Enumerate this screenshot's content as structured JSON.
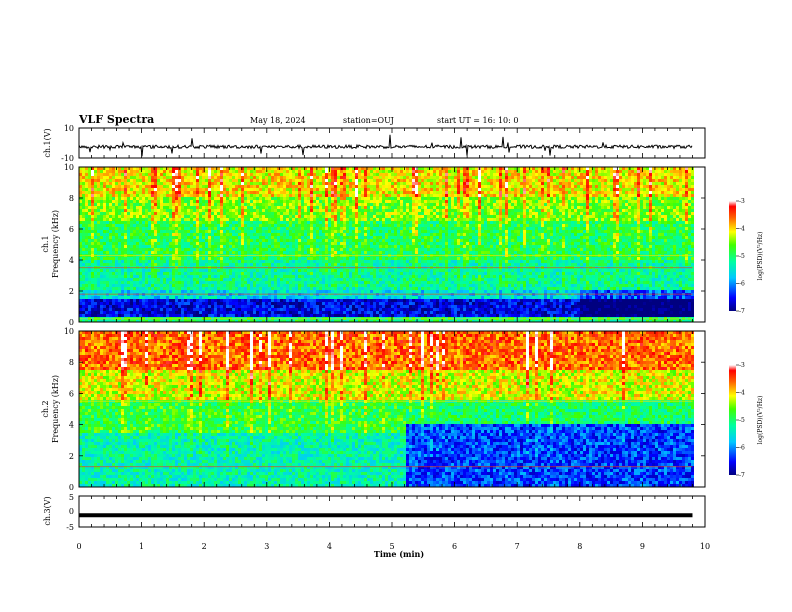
{
  "header": {
    "title": "VLF Spectra",
    "date": "May 18, 2024",
    "station": "station=OUJ",
    "start": "start  UT =   16: 10: 0"
  },
  "chart_data": [
    {
      "type": "line",
      "panel": "ch1-waveform",
      "ylabel": "ch.1(V)",
      "ylim": [
        -10,
        10
      ],
      "yticks": [
        "10",
        "-10"
      ],
      "baseline": -2.5,
      "color": "#000000"
    },
    {
      "type": "heatmap",
      "panel": "ch1-spectrogram",
      "ylabel": "ch.1\nFrequency (kHz)",
      "ylabel_lines": [
        "ch.1",
        "Frequency (kHz)"
      ],
      "ylim": [
        0,
        10
      ],
      "yticks": [
        "0",
        "2",
        "4",
        "6",
        "8",
        "10"
      ],
      "colorbar": {
        "label": "log(PSD)(V²/Hz)",
        "ticks": [
          "-3",
          "-4",
          "-5",
          "-6",
          "-7"
        ],
        "range": [
          -7,
          -3
        ]
      },
      "bands": [
        {
          "f_min": 0.0,
          "f_max": 0.3,
          "level": -5.0
        },
        {
          "f_min": 0.3,
          "f_max": 1.4,
          "level": -6.6
        },
        {
          "f_min": 1.4,
          "f_max": 2.0,
          "level": -5.6
        },
        {
          "f_min": 2.0,
          "f_max": 4.0,
          "level": -5.2
        },
        {
          "f_min": 4.0,
          "f_max": 6.5,
          "level": -4.9
        },
        {
          "f_min": 6.5,
          "f_max": 8.0,
          "level": -4.5
        },
        {
          "f_min": 8.0,
          "f_max": 10.0,
          "level": -4.1
        }
      ],
      "lines_kHz": [
        3.5,
        4.3,
        1.8,
        0.2
      ]
    },
    {
      "type": "heatmap",
      "panel": "ch2-spectrogram",
      "ylabel": "ch.2\nFrequency (kHz)",
      "ylabel_lines": [
        "ch.2",
        "Frequency (kHz)"
      ],
      "ylim": [
        0,
        10
      ],
      "yticks": [
        "0",
        "2",
        "4",
        "6",
        "8",
        "10"
      ],
      "colorbar": {
        "label": "log(PSD)(V²/Hz)",
        "ticks": [
          "-3",
          "-4",
          "-5",
          "-6",
          "-7"
        ],
        "range": [
          -7,
          -3
        ]
      },
      "bands_before_min_5_2": [
        {
          "f_min": 0.0,
          "f_max": 3.5,
          "level": -5.3
        },
        {
          "f_min": 3.5,
          "f_max": 5.5,
          "level": -4.8
        },
        {
          "f_min": 5.5,
          "f_max": 7.5,
          "level": -4.2
        },
        {
          "f_min": 7.5,
          "f_max": 10.0,
          "level": -3.6
        }
      ],
      "bands_after_min_5_2": [
        {
          "f_min": 0.0,
          "f_max": 4.0,
          "level": -6.3
        },
        {
          "f_min": 4.0,
          "f_max": 5.5,
          "level": -5.0
        },
        {
          "f_min": 5.5,
          "f_max": 7.5,
          "level": -4.2
        },
        {
          "f_min": 7.5,
          "f_max": 10.0,
          "level": -3.6
        }
      ],
      "transition_min": 5.2,
      "lines_kHz": [
        1.3,
        5.5
      ]
    },
    {
      "type": "line",
      "panel": "ch3-waveform",
      "ylabel": "ch.3(V)",
      "ylim": [
        -5,
        5
      ],
      "yticks": [
        "5",
        "0",
        "-5"
      ],
      "values": [
        -1.2
      ],
      "color": "#000000"
    }
  ],
  "xaxis": {
    "label": "Time  (min)",
    "range": [
      0,
      10
    ],
    "ticks": [
      "0",
      "1",
      "2",
      "3",
      "4",
      "5",
      "6",
      "7",
      "8",
      "9",
      "10"
    ],
    "data_end_min": 9.8
  }
}
